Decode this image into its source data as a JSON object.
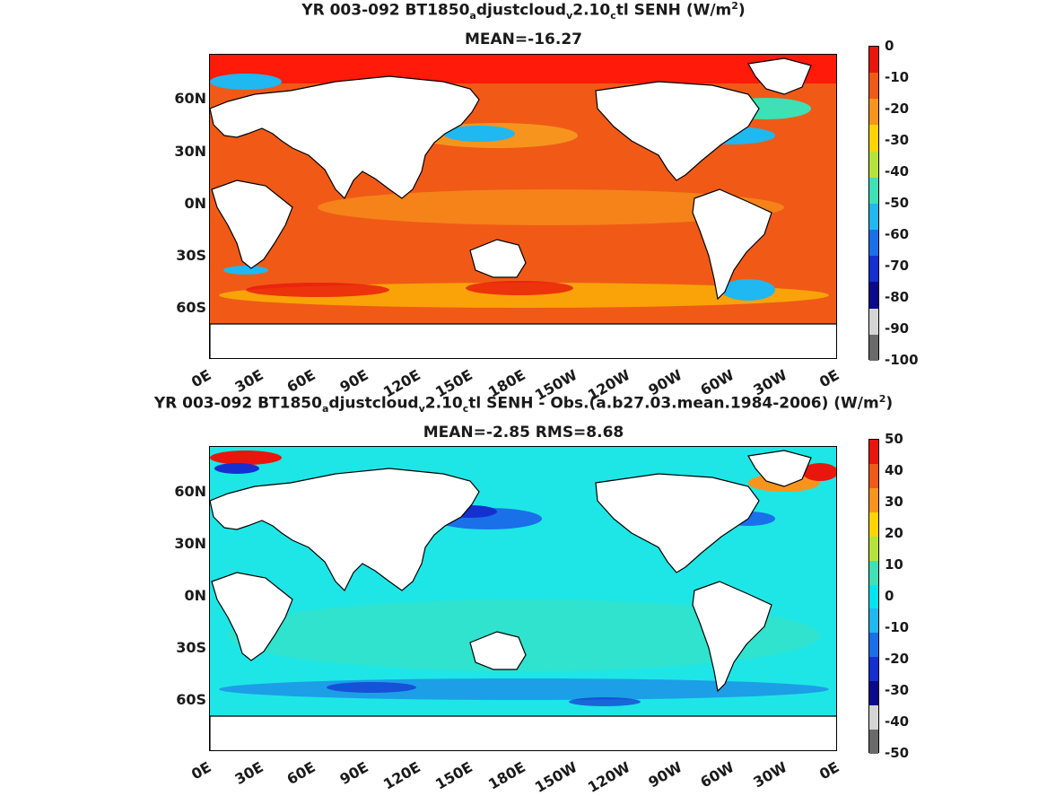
{
  "panels": [
    {
      "title_parts": [
        "YR 003-092 BT1850",
        "a",
        "djustcloud",
        "v",
        "2.10",
        "c",
        "tl  SENH (W/m",
        "2",
        ")"
      ],
      "subtitle": "MEAN=-16.27",
      "yticks": [
        "60N",
        "30N",
        "0N",
        "30S",
        "60S"
      ],
      "xticks": [
        "0E",
        "30E",
        "60E",
        "90E",
        "120E",
        "150E",
        "180E",
        "150W",
        "120W",
        "90W",
        "60W",
        "30W",
        "0E"
      ],
      "colorbar": {
        "labels": [
          "0",
          "-10",
          "-20",
          "-30",
          "-40",
          "-50",
          "-60",
          "-70",
          "-80",
          "-90",
          "-100"
        ],
        "colors": [
          "#e8160c",
          "#f05a16",
          "#f7941d",
          "#ffd400",
          "#b6e23c",
          "#3fe0b5",
          "#1fb8f0",
          "#1a70e8",
          "#1530d0",
          "#0a0a8a",
          "#d4d4d4",
          "#6a6a6a"
        ]
      }
    },
    {
      "title_parts": [
        "YR 003-092 BT1850",
        "a",
        "djustcloud",
        "v",
        "2.10",
        "c",
        "tl SENH - Obs.(a.b27.03.mean.1984-2006) (W/m",
        "2",
        ")"
      ],
      "subtitle": "MEAN=-2.85 RMS=8.68",
      "yticks": [
        "60N",
        "30N",
        "0N",
        "30S",
        "60S"
      ],
      "xticks": [
        "0E",
        "30E",
        "60E",
        "90E",
        "120E",
        "150E",
        "180E",
        "150W",
        "120W",
        "90W",
        "60W",
        "30W",
        "0E"
      ],
      "colorbar": {
        "labels": [
          "50",
          "40",
          "30",
          "20",
          "10",
          "0",
          "-10",
          "-20",
          "-30",
          "-40",
          "-50"
        ],
        "colors": [
          "#e8160c",
          "#f05a16",
          "#f7941d",
          "#ffd400",
          "#b6e23c",
          "#3fe0b5",
          "#00e5f0",
          "#1fb8f0",
          "#1a70e8",
          "#1530d0",
          "#0a0a8a",
          "#d4d4d4",
          "#6a6a6a"
        ]
      }
    }
  ],
  "colors": {
    "land": "#ffffff",
    "coast": "#000000",
    "top_ocean": "#f05a16",
    "top_arctic": "#ff1a0a",
    "bot_ocean": "#1ee6e6"
  }
}
